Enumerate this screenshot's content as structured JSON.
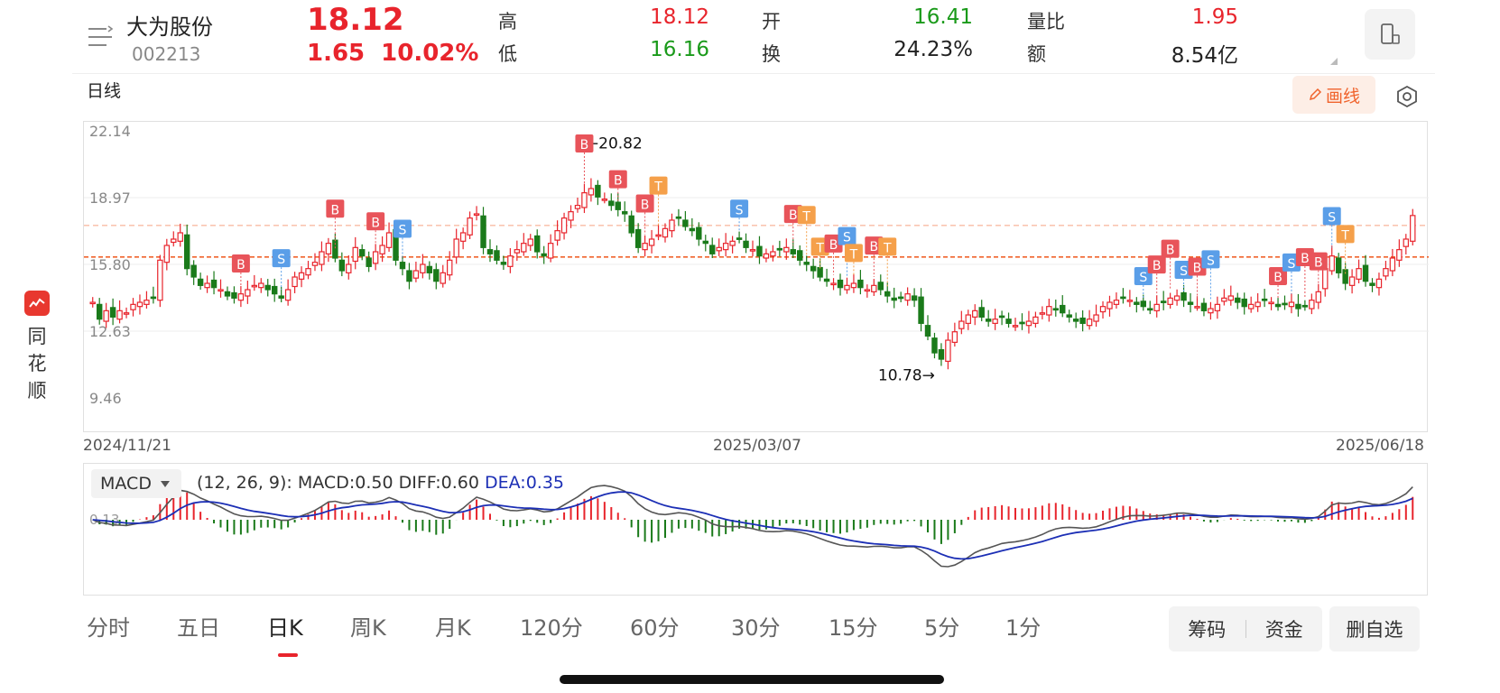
{
  "brand": {
    "name_chars": [
      "同",
      "花",
      "顺"
    ],
    "logo_icon": "ths-logo-icon"
  },
  "header": {
    "stock_name": "大为股份",
    "stock_code": "002213",
    "price": "18.12",
    "change": "1.65",
    "change_pct": "10.02%",
    "quote_rows": [
      {
        "label_a": "高",
        "value_a": "18.12",
        "label_b": "开",
        "value_b": "16.41",
        "label_c": "量比",
        "value_c": "1.95"
      },
      {
        "label_a": "低",
        "value_a": "16.16",
        "label_b": "换",
        "value_b": "24.23%",
        "label_c": "额",
        "value_c": "8.54亿"
      }
    ]
  },
  "chart_header": {
    "period": "日线",
    "draw_button": "画线"
  },
  "chart_data": {
    "type": "candlestick",
    "y_tick_labels": [
      "22.14",
      "18.97",
      "15.80",
      "12.63",
      "9.46"
    ],
    "ylim": [
      9.46,
      22.14
    ],
    "x_labels": [
      "2024/11/21",
      "2025/03/07",
      "2025/06/18"
    ],
    "annotation_high": "←20.82",
    "annotation_low": "10.78→",
    "reference_levels": [
      17.65,
      16.15
    ],
    "series_close": [
      14.0,
      13.2,
      13.6,
      13.3,
      13.6,
      13.5,
      13.9,
      14.0,
      14.1,
      14.2,
      16.0,
      16.7,
      17.0,
      17.3,
      15.6,
      15.2,
      14.8,
      14.9,
      14.7,
      14.6,
      14.3,
      14.2,
      14.4,
      14.6,
      14.8,
      14.9,
      14.6,
      14.4,
      14.2,
      14.6,
      15.2,
      15.4,
      15.6,
      15.9,
      16.4,
      16.8,
      16.1,
      15.5,
      15.8,
      16.6,
      16.2,
      15.7,
      16.4,
      16.7,
      17.3,
      16.0,
      15.6,
      15.0,
      15.5,
      15.8,
      15.4,
      15.0,
      15.4,
      16.0,
      17.0,
      17.3,
      18.0,
      18.2,
      16.6,
      16.3,
      16.0,
      15.8,
      16.2,
      16.5,
      16.8,
      17.0,
      16.4,
      16.2,
      16.8,
      17.4,
      18.0,
      18.3,
      18.6,
      19.2,
      19.4,
      19.0,
      18.9,
      18.6,
      18.4,
      18.2,
      17.3,
      16.6,
      16.8,
      17.0,
      17.2,
      17.5,
      17.9,
      18.0,
      17.6,
      17.4,
      17.0,
      16.8,
      16.3,
      16.6,
      16.8,
      16.9,
      17.0,
      16.6,
      16.5,
      16.2,
      16.3,
      16.4,
      16.5,
      16.6,
      16.3,
      16.0,
      15.8,
      15.5,
      15.2,
      15.0,
      14.9,
      14.7,
      14.8,
      14.9,
      14.7,
      14.6,
      14.8,
      14.6,
      14.3,
      14.1,
      14.2,
      14.4,
      14.1,
      13.0,
      12.4,
      11.6,
      11.3,
      12.2,
      12.6,
      13.1,
      13.4,
      13.6,
      13.3,
      13.1,
      13.2,
      13.3,
      13.0,
      12.9,
      13.0,
      13.1,
      13.3,
      13.5,
      13.8,
      13.7,
      13.5,
      13.3,
      13.1,
      13.0,
      13.2,
      13.4,
      13.8,
      14.0,
      14.1,
      14.2,
      14.1,
      13.9,
      13.8,
      13.7,
      13.9,
      14.0,
      14.2,
      14.3,
      14.1,
      13.9,
      13.8,
      13.6,
      13.7,
      13.9,
      14.2,
      14.3,
      14.0,
      13.8,
      13.9,
      14.0,
      14.1,
      14.0,
      13.8,
      13.9,
      14.0,
      13.7,
      13.8,
      14.1,
      14.5,
      15.6,
      16.2,
      15.4,
      14.9,
      15.2,
      15.6,
      15.0,
      14.8,
      15.1,
      15.6,
      16.1,
      16.5,
      17.0,
      18.12
    ],
    "series_low": [
      11.1,
      11.1,
      10.78,
      11.4
    ],
    "macd": {
      "label": "MACD",
      "params": "(12, 26, 9):",
      "macd_label": "MACD:",
      "macd_value": "0.50",
      "diff_label": "DIFF:",
      "diff_value": "0.60",
      "dea_label": "DEA:",
      "dea_value": "0.35",
      "y_tick": "0.13"
    },
    "signal_flags": [
      "B",
      "S",
      "T"
    ]
  },
  "tabs": [
    "分时",
    "五日",
    "日K",
    "周K",
    "月K",
    "120分",
    "60分",
    "30分",
    "15分",
    "5分",
    "1分"
  ],
  "active_tab": "日K",
  "actions": {
    "chips": "筹码",
    "funds": "资金",
    "delete_watch": "删自选"
  },
  "colors": {
    "up": "#e8242c",
    "down": "#1a7a1a",
    "accent": "#f0632c",
    "dea": "#1c2fb5"
  }
}
